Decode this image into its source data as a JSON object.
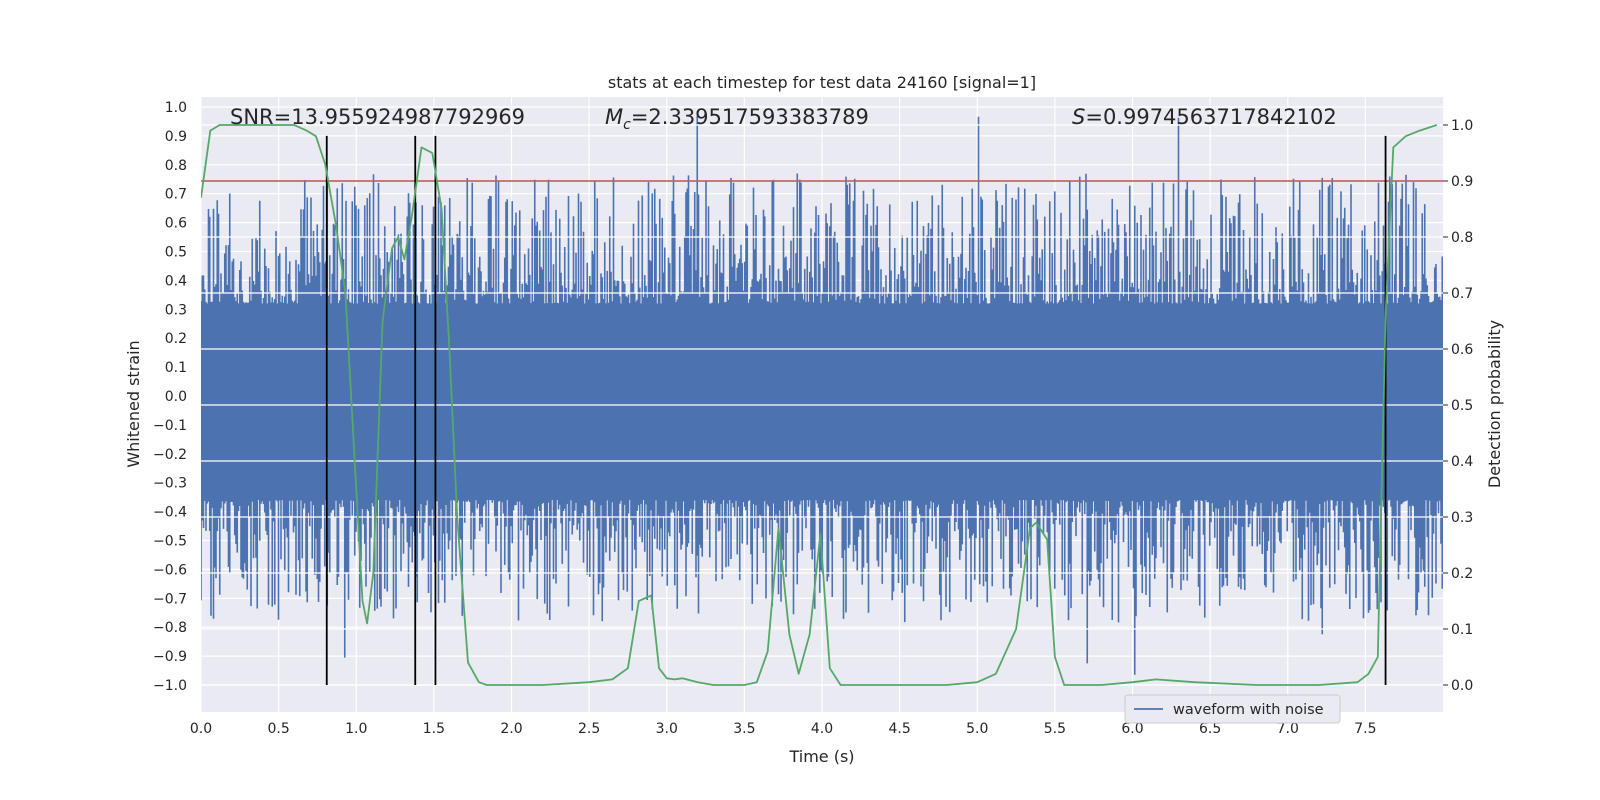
{
  "chart_data": {
    "type": "line",
    "title": "stats at each timestep for test data 24160 [signal=1]",
    "xlabel": "Time (s)",
    "ylabel_left": "Whitened strain",
    "ylabel_right": "Detection probability",
    "xlim": [
      0,
      8.0
    ],
    "ylim_left": [
      -1.0,
      1.0
    ],
    "ylim_right": [
      -0.05,
      1.05
    ],
    "x_ticks": [
      0.0,
      0.5,
      1.0,
      1.5,
      2.0,
      2.5,
      3.0,
      3.5,
      4.0,
      4.5,
      5.0,
      5.5,
      6.0,
      6.5,
      7.0,
      7.5
    ],
    "x_tick_labels": [
      "0.0",
      "0.5",
      "1.0",
      "1.5",
      "2.0",
      "2.5",
      "3.0",
      "3.5",
      "4.0",
      "4.5",
      "5.0",
      "5.5",
      "6.0",
      "6.5",
      "7.0",
      "7.5"
    ],
    "y_left_ticks": [
      1.0,
      0.9,
      0.8,
      0.7,
      0.6,
      0.5,
      0.4,
      0.3,
      0.2,
      0.1,
      0.0,
      -0.1,
      -0.2,
      -0.3,
      -0.4,
      -0.5,
      -0.6,
      -0.7,
      -0.8,
      -0.9,
      -1.0
    ],
    "y_left_tick_labels": [
      "1.0",
      "0.9",
      "0.8",
      "0.7",
      "0.6",
      "0.5",
      "0.4",
      "0.3",
      "0.2",
      "0.1",
      "0.0",
      "−0.1",
      "−0.2",
      "−0.3",
      "−0.4",
      "−0.5",
      "−0.6",
      "−0.7",
      "−0.8",
      "−0.9",
      "−1.0"
    ],
    "y_right_ticks": [
      1.0,
      0.9,
      0.8,
      0.7,
      0.6,
      0.5,
      0.4,
      0.3,
      0.2,
      0.1,
      0.0
    ],
    "y_right_tick_labels": [
      "1.0",
      "0.9",
      "0.8",
      "0.7",
      "0.6",
      "0.5",
      "0.4",
      "0.3",
      "0.2",
      "0.1",
      "0.0"
    ],
    "grid": true,
    "legend": {
      "position": "lower-right",
      "entries": [
        "waveform with noise"
      ]
    },
    "annotations": {
      "snr": "SNR=13.955924987792969",
      "mc_symbol": "M",
      "mc_subscript": "c",
      "mc_value": "=2.339517593383789",
      "s_symbol": "S",
      "s_value": "=0.9974563717842102"
    },
    "threshold": {
      "value": 0.9,
      "axis": "right",
      "color": "#c44e52"
    },
    "vertical_lines": {
      "x": [
        0.81,
        1.38,
        1.51,
        7.63
      ],
      "y_range": [
        -1.0,
        0.9
      ],
      "color": "#000000"
    },
    "waveform": {
      "name": "waveform with noise",
      "color": "#4c72b0",
      "x_range": [
        0,
        8.0
      ],
      "band_upper": 0.32,
      "band_lower": -0.36,
      "max_abs": 1.0
    },
    "probability_series": {
      "color": "#55a868",
      "x": [
        0.0,
        0.06,
        0.12,
        0.3,
        0.5,
        0.6,
        0.68,
        0.74,
        0.8,
        0.87,
        0.93,
        0.99,
        1.04,
        1.07,
        1.11,
        1.17,
        1.23,
        1.27,
        1.31,
        1.36,
        1.42,
        1.49,
        1.55,
        1.6,
        1.65,
        1.72,
        1.79,
        1.84,
        1.9,
        2.0,
        2.2,
        2.5,
        2.65,
        2.75,
        2.82,
        2.9,
        2.95,
        3.0,
        3.05,
        3.1,
        3.2,
        3.3,
        3.4,
        3.5,
        3.58,
        3.65,
        3.72,
        3.79,
        3.85,
        3.92,
        3.99,
        4.05,
        4.12,
        4.2,
        4.4,
        4.8,
        5.0,
        5.12,
        5.25,
        5.34,
        5.38,
        5.45,
        5.5,
        5.56,
        5.63,
        5.8,
        6.0,
        6.15,
        6.4,
        6.8,
        7.2,
        7.45,
        7.52,
        7.58,
        7.63,
        7.68,
        7.76,
        7.85,
        7.96
      ],
      "y": [
        0.87,
        0.99,
        1.0,
        1.0,
        1.0,
        1.0,
        0.99,
        0.98,
        0.93,
        0.82,
        0.7,
        0.4,
        0.15,
        0.11,
        0.2,
        0.65,
        0.78,
        0.8,
        0.76,
        0.84,
        0.96,
        0.95,
        0.85,
        0.6,
        0.3,
        0.04,
        0.005,
        0.0,
        0.0,
        0.0,
        0.0,
        0.005,
        0.01,
        0.03,
        0.15,
        0.16,
        0.03,
        0.012,
        0.01,
        0.012,
        0.005,
        0.0,
        0.0,
        0.0,
        0.005,
        0.06,
        0.28,
        0.09,
        0.02,
        0.09,
        0.27,
        0.03,
        0.0,
        0.0,
        0.0,
        0.0,
        0.005,
        0.02,
        0.1,
        0.28,
        0.29,
        0.26,
        0.05,
        0.0,
        0.0,
        0.0,
        0.005,
        0.01,
        0.005,
        0.0,
        0.0,
        0.005,
        0.02,
        0.05,
        0.66,
        0.96,
        0.98,
        0.99,
        1.0
      ]
    }
  }
}
